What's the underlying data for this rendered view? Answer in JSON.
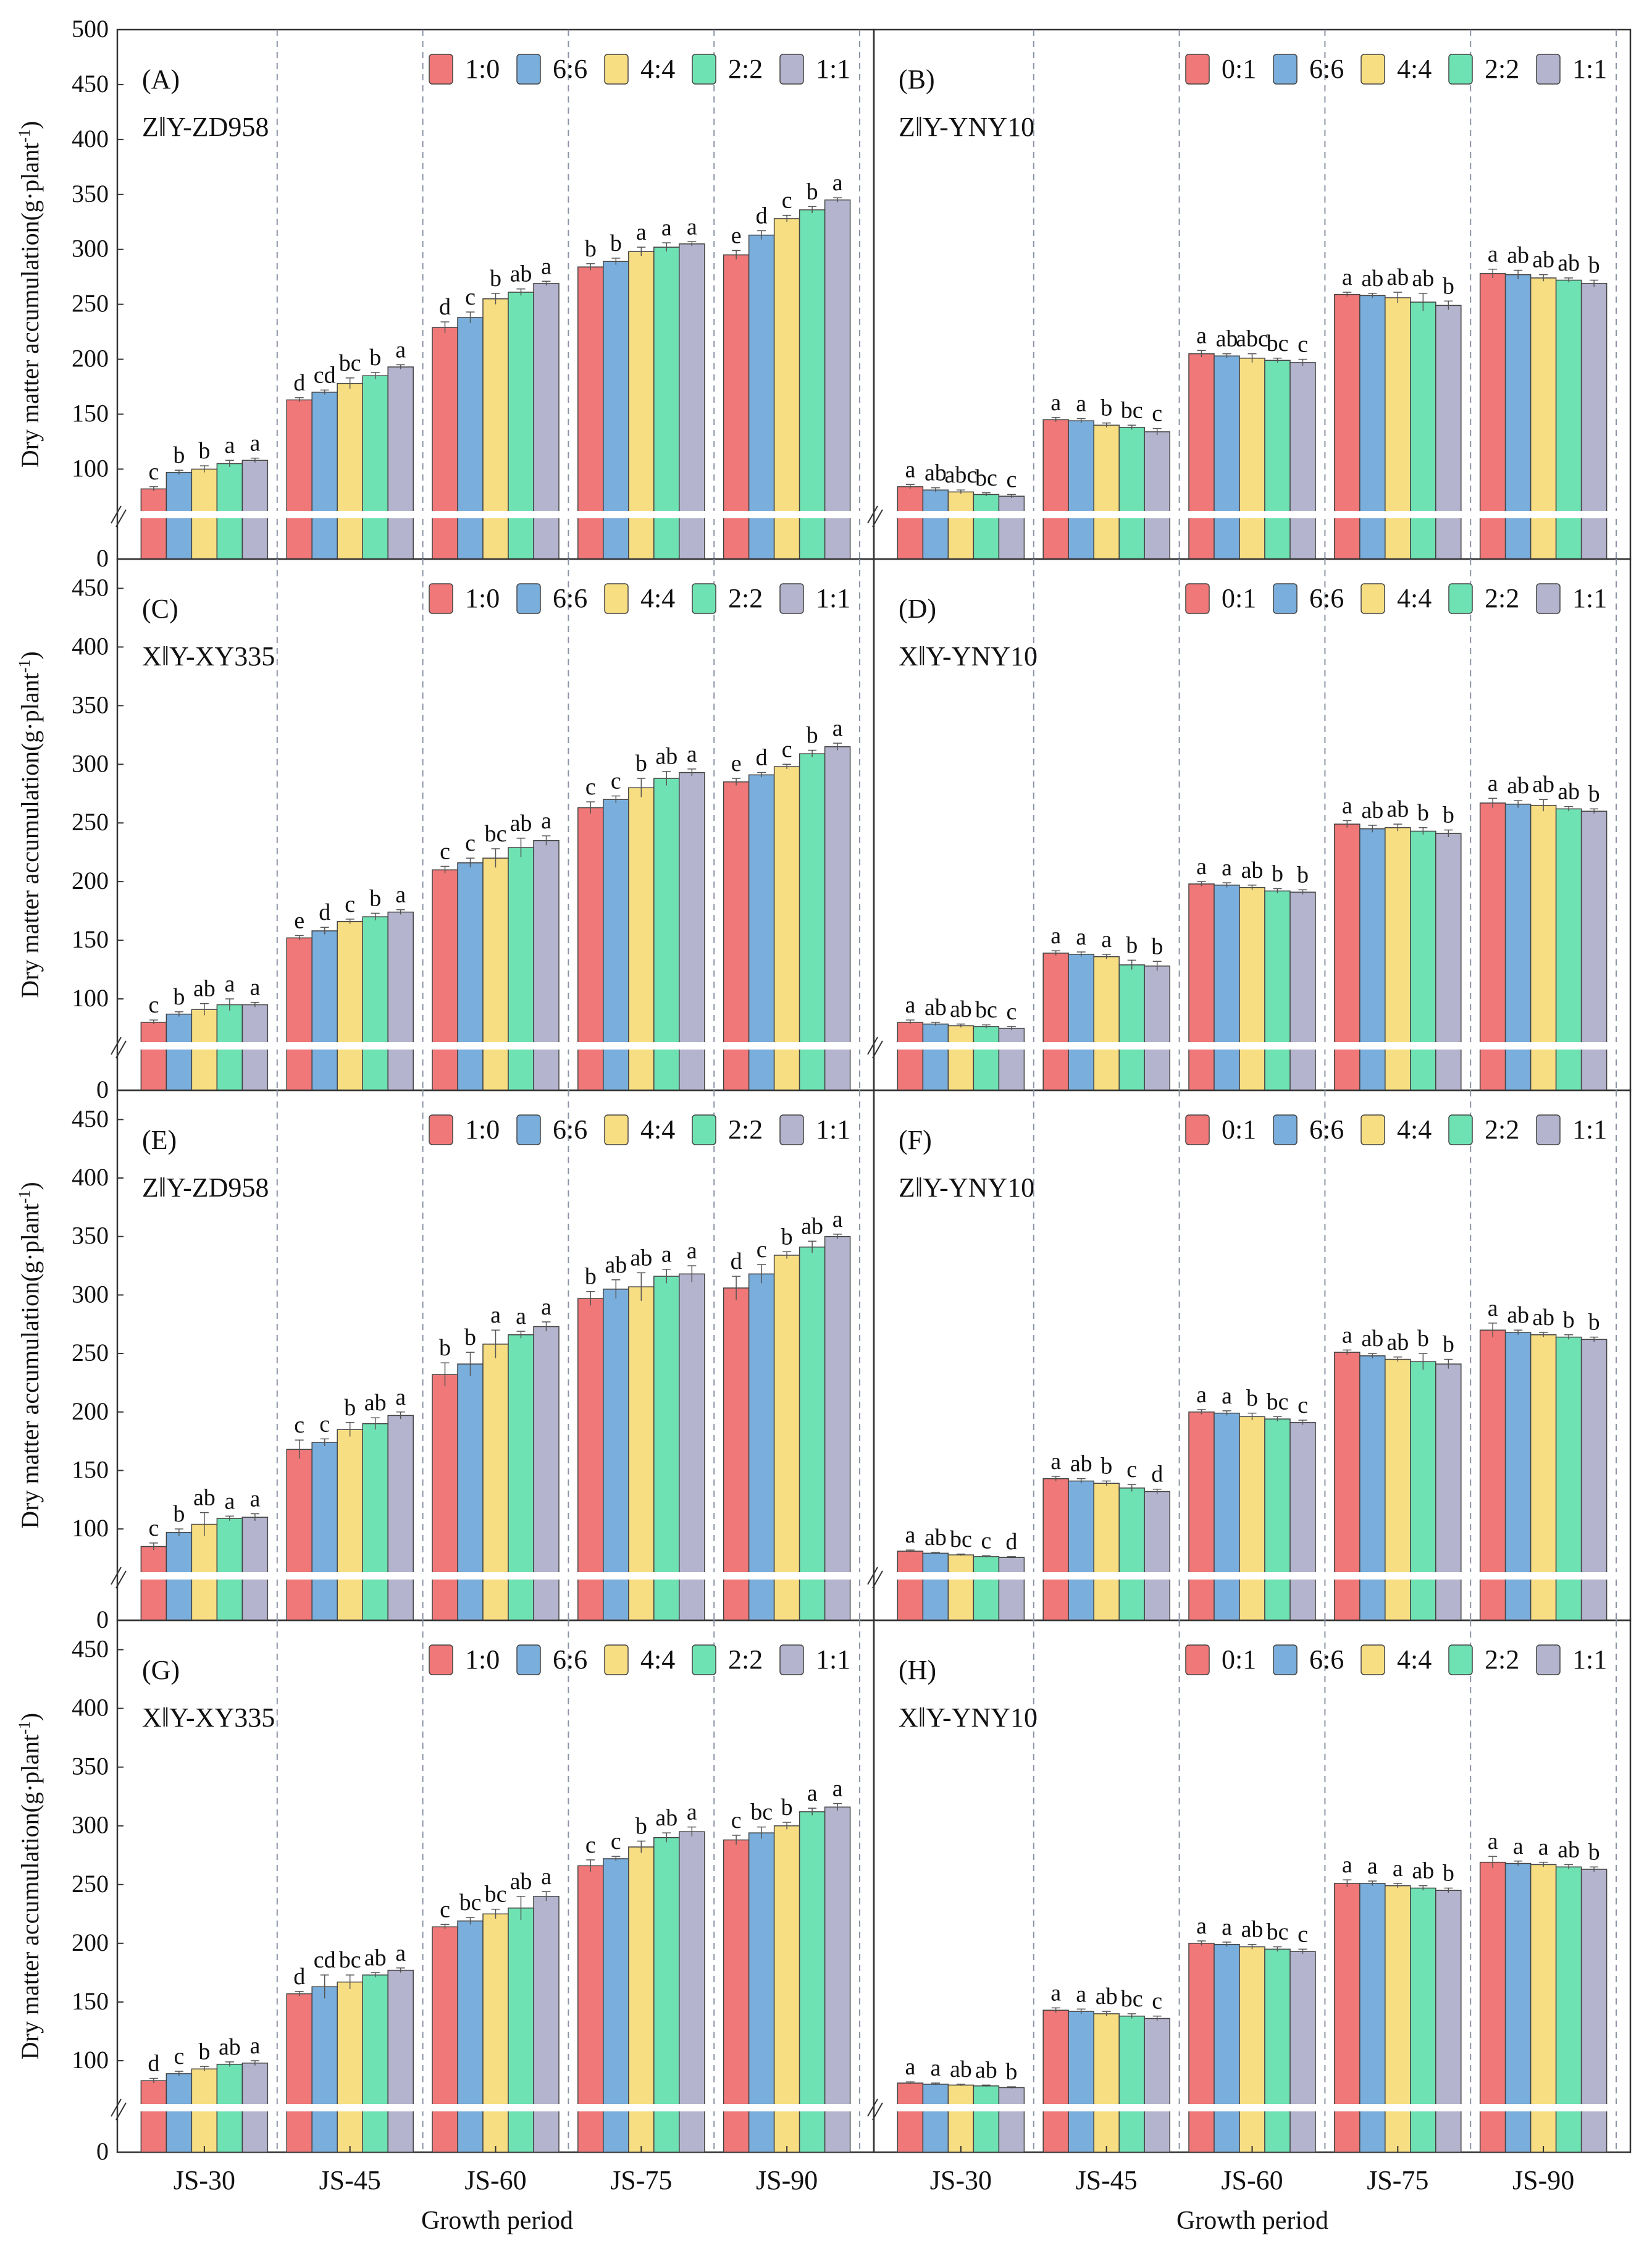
{
  "figure": {
    "y_axis_label": "Dry matter accumulation(g·plant",
    "y_axis_label_sup": "-1",
    "y_axis_label_close": ")",
    "x_axis_label": "Growth period",
    "categories": [
      "JS-30",
      "JS-45",
      "JS-60",
      "JS-75",
      "JS-90"
    ],
    "series_colors": [
      "#F07878",
      "#7AAEDC",
      "#F8DE82",
      "#6FE2B4",
      "#B4B4CE"
    ]
  },
  "chart_data": [
    {
      "panel": "(A)",
      "subtitle": "Z‖Y-ZD958",
      "type": "bar",
      "ylim": [
        0,
        500
      ],
      "yticks": [
        "0",
        "100",
        "150",
        "200",
        "250",
        "300",
        "350",
        "400",
        "450",
        "500"
      ],
      "legend": [
        "1:0",
        "6:6",
        "4:4",
        "2:2",
        "1:1"
      ],
      "categories": [
        "JS-30",
        "JS-45",
        "JS-60",
        "JS-75",
        "JS-90"
      ],
      "series": [
        {
          "name": "1:0",
          "values": [
            82,
            163,
            229,
            284,
            295
          ],
          "errors": [
            2,
            2,
            5,
            3,
            4
          ],
          "letters": [
            "c",
            "d",
            "d",
            "b",
            "e"
          ]
        },
        {
          "name": "6:6",
          "values": [
            97,
            170,
            238,
            289,
            313
          ],
          "errors": [
            2,
            2,
            5,
            3,
            4
          ],
          "letters": [
            "b",
            "cd",
            "c",
            "b",
            "d"
          ]
        },
        {
          "name": "4:4",
          "values": [
            100,
            178,
            255,
            298,
            328
          ],
          "errors": [
            3,
            5,
            5,
            4,
            3
          ],
          "letters": [
            "b",
            "bc",
            "b",
            "a",
            "c"
          ]
        },
        {
          "name": "2:2",
          "values": [
            105,
            185,
            261,
            302,
            336
          ],
          "errors": [
            3,
            3,
            3,
            4,
            3
          ],
          "letters": [
            "a",
            "b",
            "ab",
            "a",
            "b"
          ]
        },
        {
          "name": "1:1",
          "values": [
            108,
            193,
            269,
            305,
            345
          ],
          "errors": [
            2,
            2,
            2,
            2,
            2
          ],
          "letters": [
            "a",
            "a",
            "a",
            "a",
            "a"
          ]
        }
      ]
    },
    {
      "panel": "(B)",
      "subtitle": "Z‖Y-YNY10",
      "type": "bar",
      "ylim": [
        0,
        500
      ],
      "yticks": [],
      "legend": [
        "0:1",
        "6:6",
        "4:4",
        "2:2",
        "1:1"
      ],
      "categories": [
        "JS-30",
        "JS-45",
        "JS-60",
        "JS-75",
        "JS-90"
      ],
      "series": [
        {
          "name": "0:1",
          "values": [
            84,
            145,
            205,
            259,
            278
          ],
          "errors": [
            2,
            2,
            3,
            2,
            4
          ],
          "letters": [
            "a",
            "a",
            "a",
            "a",
            "a"
          ]
        },
        {
          "name": "6:6",
          "values": [
            81,
            144,
            203,
            258,
            277
          ],
          "errors": [
            2,
            2,
            2,
            2,
            4
          ],
          "letters": [
            "ab",
            "a",
            "ab",
            "ab",
            "ab"
          ]
        },
        {
          "name": "4:4",
          "values": [
            79,
            140,
            201,
            256,
            274
          ],
          "errors": [
            2,
            2,
            4,
            5,
            3
          ],
          "letters": [
            "abc",
            "b",
            "abc",
            "ab",
            "ab"
          ]
        },
        {
          "name": "2:2",
          "values": [
            76,
            138,
            199,
            252,
            272
          ],
          "errors": [
            2,
            2,
            2,
            8,
            2
          ],
          "letters": [
            "bc",
            "bc",
            "bc",
            "ab",
            "ab"
          ]
        },
        {
          "name": "1:1",
          "values": [
            74,
            134,
            197,
            249,
            269
          ],
          "errors": [
            2,
            3,
            3,
            4,
            3
          ],
          "letters": [
            "c",
            "c",
            "c",
            "b",
            "b"
          ]
        }
      ]
    },
    {
      "panel": "(C)",
      "subtitle": "X‖Y-XY335",
      "type": "bar",
      "ylim": [
        0,
        475
      ],
      "yticks": [
        "0",
        "100",
        "150",
        "200",
        "250",
        "300",
        "350",
        "400",
        "450"
      ],
      "legend": [
        "1:0",
        "6:6",
        "4:4",
        "2:2",
        "1:1"
      ],
      "categories": [
        "JS-30",
        "JS-45",
        "JS-60",
        "JS-75",
        "JS-90"
      ],
      "series": [
        {
          "name": "1:0",
          "values": [
            80,
            152,
            210,
            263,
            285
          ],
          "errors": [
            2,
            2,
            3,
            5,
            3
          ],
          "letters": [
            "c",
            "e",
            "c",
            "c",
            "e"
          ]
        },
        {
          "name": "6:6",
          "values": [
            87,
            158,
            216,
            270,
            291
          ],
          "errors": [
            2,
            3,
            4,
            3,
            2
          ],
          "letters": [
            "b",
            "d",
            "c",
            "c",
            "d"
          ]
        },
        {
          "name": "4:4",
          "values": [
            91,
            166,
            220,
            280,
            298
          ],
          "errors": [
            5,
            2,
            8,
            8,
            2
          ],
          "letters": [
            "ab",
            "c",
            "bc",
            "b",
            "c"
          ]
        },
        {
          "name": "2:2",
          "values": [
            95,
            170,
            229,
            288,
            309
          ],
          "errors": [
            5,
            3,
            8,
            6,
            3
          ],
          "letters": [
            "a",
            "b",
            "ab",
            "ab",
            "b"
          ]
        },
        {
          "name": "1:1",
          "values": [
            95,
            174,
            235,
            293,
            315
          ],
          "errors": [
            2,
            2,
            4,
            3,
            3
          ],
          "letters": [
            "a",
            "a",
            "a",
            "a",
            "a"
          ]
        }
      ]
    },
    {
      "panel": "(D)",
      "subtitle": "X‖Y-YNY10",
      "type": "bar",
      "ylim": [
        0,
        475
      ],
      "yticks": [],
      "legend": [
        "0:1",
        "6:6",
        "4:4",
        "2:2",
        "1:1"
      ],
      "categories": [
        "JS-30",
        "JS-45",
        "JS-60",
        "JS-75",
        "JS-90"
      ],
      "series": [
        {
          "name": "0:1",
          "values": [
            80,
            139,
            198,
            249,
            267
          ],
          "errors": [
            2,
            2,
            2,
            3,
            4
          ],
          "letters": [
            "a",
            "a",
            "a",
            "a",
            "a"
          ]
        },
        {
          "name": "6:6",
          "values": [
            78,
            138,
            197,
            245,
            266
          ],
          "errors": [
            2,
            2,
            2,
            3,
            3
          ],
          "letters": [
            "ab",
            "a",
            "a",
            "ab",
            "ab"
          ]
        },
        {
          "name": "4:4",
          "values": [
            76,
            136,
            195,
            246,
            265
          ],
          "errors": [
            2,
            2,
            2,
            3,
            5
          ],
          "letters": [
            "ab",
            "a",
            "ab",
            "ab",
            "ab"
          ]
        },
        {
          "name": "2:2",
          "values": [
            75,
            129,
            192,
            243,
            262
          ],
          "errors": [
            2,
            4,
            2,
            3,
            2
          ],
          "letters": [
            "bc",
            "b",
            "b",
            "b",
            "ab"
          ]
        },
        {
          "name": "1:1",
          "values": [
            73,
            128,
            191,
            241,
            260
          ],
          "errors": [
            2,
            4,
            2,
            3,
            2
          ],
          "letters": [
            "c",
            "b",
            "b",
            "b",
            "b"
          ]
        }
      ]
    },
    {
      "panel": "(E)",
      "subtitle": "Z‖Y-ZD958",
      "type": "bar",
      "ylim": [
        0,
        475
      ],
      "yticks": [
        "0",
        "100",
        "150",
        "200",
        "250",
        "300",
        "350",
        "400",
        "450"
      ],
      "legend": [
        "1:0",
        "6:6",
        "4:4",
        "2:2",
        "1:1"
      ],
      "categories": [
        "JS-30",
        "JS-45",
        "JS-60",
        "JS-75",
        "JS-90"
      ],
      "series": [
        {
          "name": "1:0",
          "values": [
            85,
            168,
            232,
            297,
            306
          ],
          "errors": [
            3,
            8,
            10,
            6,
            10
          ],
          "letters": [
            "c",
            "c",
            "b",
            "b",
            "d"
          ]
        },
        {
          "name": "6:6",
          "values": [
            97,
            174,
            241,
            305,
            318
          ],
          "errors": [
            3,
            3,
            10,
            8,
            8
          ],
          "letters": [
            "b",
            "c",
            "b",
            "ab",
            "c"
          ]
        },
        {
          "name": "4:4",
          "values": [
            104,
            185,
            258,
            307,
            334
          ],
          "errors": [
            10,
            6,
            12,
            12,
            3
          ],
          "letters": [
            "ab",
            "b",
            "a",
            "ab",
            "b"
          ]
        },
        {
          "name": "2:2",
          "values": [
            109,
            190,
            266,
            316,
            341
          ],
          "errors": [
            2,
            5,
            3,
            6,
            5
          ],
          "letters": [
            "a",
            "ab",
            "a",
            "a",
            "ab"
          ]
        },
        {
          "name": "1:1",
          "values": [
            110,
            197,
            273,
            318,
            350
          ],
          "errors": [
            3,
            3,
            4,
            7,
            2
          ],
          "letters": [
            "a",
            "a",
            "a",
            "a",
            "a"
          ]
        }
      ]
    },
    {
      "panel": "(F)",
      "subtitle": "Z‖Y-YNY10",
      "type": "bar",
      "ylim": [
        0,
        475
      ],
      "yticks": [],
      "legend": [
        "0:1",
        "6:6",
        "4:4",
        "2:2",
        "1:1"
      ],
      "categories": [
        "JS-30",
        "JS-45",
        "JS-60",
        "JS-75",
        "JS-90"
      ],
      "series": [
        {
          "name": "0:1",
          "values": [
            81,
            143,
            200,
            251,
            270
          ],
          "errors": [
            1,
            2,
            2,
            2,
            6
          ],
          "letters": [
            "a",
            "a",
            "a",
            "a",
            "a"
          ]
        },
        {
          "name": "6:6",
          "values": [
            79,
            141,
            199,
            248,
            268
          ],
          "errors": [
            1,
            2,
            2,
            2,
            2
          ],
          "letters": [
            "ab",
            "ab",
            "a",
            "ab",
            "ab"
          ]
        },
        {
          "name": "4:4",
          "values": [
            77,
            139,
            196,
            245,
            266
          ],
          "errors": [
            1,
            2,
            3,
            2,
            2
          ],
          "letters": [
            "bc",
            "b",
            "b",
            "ab",
            "ab"
          ]
        },
        {
          "name": "2:2",
          "values": [
            75,
            135,
            194,
            243,
            264
          ],
          "errors": [
            1,
            3,
            2,
            7,
            2
          ],
          "letters": [
            "c",
            "c",
            "bc",
            "b",
            "b"
          ]
        },
        {
          "name": "1:1",
          "values": [
            74,
            132,
            191,
            241,
            262
          ],
          "errors": [
            1,
            2,
            2,
            4,
            2
          ],
          "letters": [
            "d",
            "d",
            "c",
            "b",
            "b"
          ]
        }
      ]
    },
    {
      "panel": "(G)",
      "subtitle": "X‖Y-XY335",
      "type": "bar",
      "ylim": [
        0,
        475
      ],
      "yticks": [
        "0",
        "100",
        "150",
        "200",
        "250",
        "300",
        "350",
        "400",
        "450"
      ],
      "legend": [
        "1:0",
        "6:6",
        "4:4",
        "2:2",
        "1:1"
      ],
      "categories": [
        "JS-30",
        "JS-45",
        "JS-60",
        "JS-75",
        "JS-90"
      ],
      "series": [
        {
          "name": "1:0",
          "values": [
            83,
            157,
            214,
            266,
            288
          ],
          "errors": [
            2,
            2,
            2,
            5,
            4
          ],
          "letters": [
            "d",
            "d",
            "c",
            "c",
            "c"
          ]
        },
        {
          "name": "6:6",
          "values": [
            89,
            163,
            219,
            272,
            294
          ],
          "errors": [
            2,
            10,
            3,
            2,
            5
          ],
          "letters": [
            "c",
            "cd",
            "bc",
            "c",
            "bc"
          ]
        },
        {
          "name": "4:4",
          "values": [
            93,
            167,
            225,
            282,
            300
          ],
          "errors": [
            2,
            6,
            4,
            5,
            3
          ],
          "letters": [
            "b",
            "bc",
            "bc",
            "b",
            "b"
          ]
        },
        {
          "name": "2:2",
          "values": [
            97,
            173,
            230,
            290,
            312
          ],
          "errors": [
            2,
            2,
            10,
            4,
            3
          ],
          "letters": [
            "ab",
            "ab",
            "ab",
            "ab",
            "a"
          ]
        },
        {
          "name": "1:1",
          "values": [
            98,
            177,
            240,
            295,
            316
          ],
          "errors": [
            2,
            2,
            4,
            4,
            3
          ],
          "letters": [
            "a",
            "a",
            "a",
            "a",
            "a"
          ]
        }
      ]
    },
    {
      "panel": "(H)",
      "subtitle": "X‖Y-YNY10",
      "type": "bar",
      "ylim": [
        0,
        475
      ],
      "yticks": [],
      "legend": [
        "0:1",
        "6:6",
        "4:4",
        "2:2",
        "1:1"
      ],
      "categories": [
        "JS-30",
        "JS-45",
        "JS-60",
        "JS-75",
        "JS-90"
      ],
      "series": [
        {
          "name": "0:1",
          "values": [
            81,
            143,
            200,
            251,
            269
          ],
          "errors": [
            1,
            2,
            2,
            3,
            5
          ],
          "letters": [
            "a",
            "a",
            "a",
            "a",
            "a"
          ]
        },
        {
          "name": "6:6",
          "values": [
            80,
            142,
            199,
            251,
            268
          ],
          "errors": [
            1,
            2,
            2,
            2,
            2
          ],
          "letters": [
            "a",
            "a",
            "a",
            "a",
            "a"
          ]
        },
        {
          "name": "4:4",
          "values": [
            79,
            140,
            197,
            249,
            267
          ],
          "errors": [
            1,
            2,
            2,
            2,
            2
          ],
          "letters": [
            "ab",
            "ab",
            "ab",
            "a",
            "a"
          ]
        },
        {
          "name": "2:2",
          "values": [
            78,
            138,
            195,
            247,
            265
          ],
          "errors": [
            1,
            2,
            2,
            2,
            2
          ],
          "letters": [
            "ab",
            "bc",
            "bc",
            "ab",
            "ab"
          ]
        },
        {
          "name": "1:1",
          "values": [
            76,
            136,
            193,
            245,
            263
          ],
          "errors": [
            1,
            2,
            2,
            2,
            2
          ],
          "letters": [
            "b",
            "c",
            "c",
            "b",
            "b"
          ]
        }
      ]
    }
  ]
}
